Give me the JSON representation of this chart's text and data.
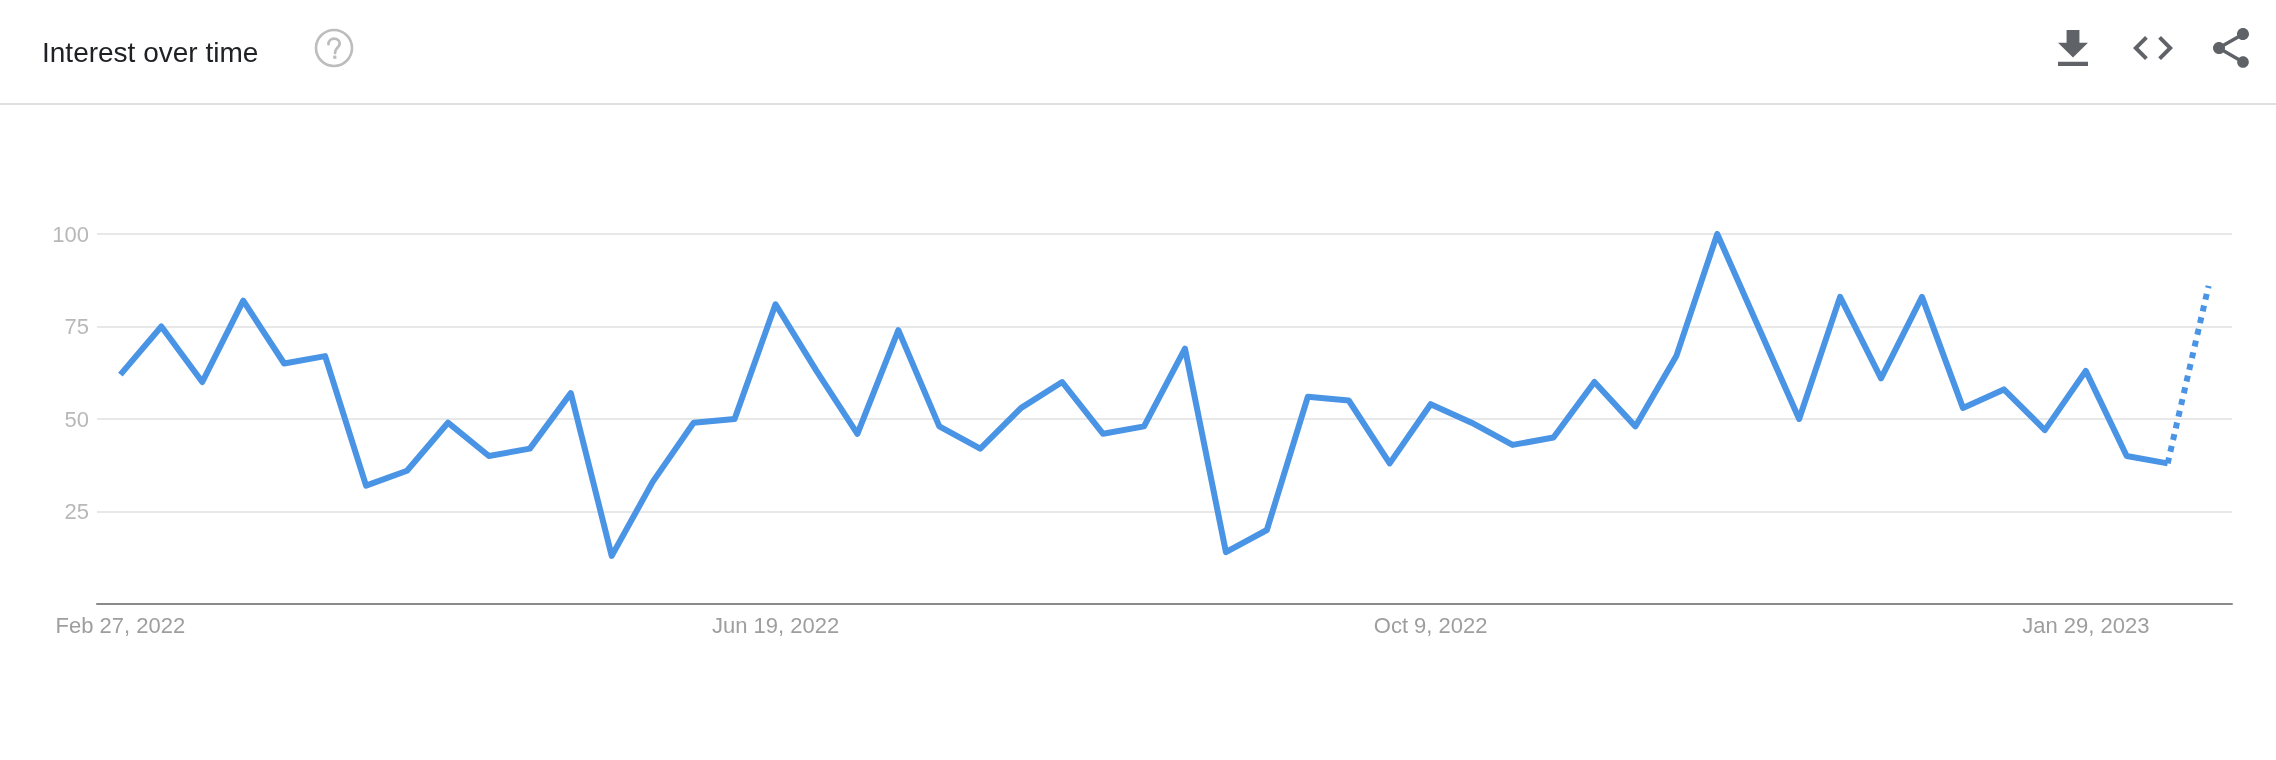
{
  "chart_data": {
    "type": "line",
    "title": "Interest over time",
    "x": [
      "2022-02-27",
      "2022-03-06",
      "2022-03-13",
      "2022-03-20",
      "2022-03-27",
      "2022-04-03",
      "2022-04-10",
      "2022-04-17",
      "2022-04-24",
      "2022-05-01",
      "2022-05-08",
      "2022-05-15",
      "2022-05-22",
      "2022-05-29",
      "2022-06-05",
      "2022-06-12",
      "2022-06-19",
      "2022-06-26",
      "2022-07-03",
      "2022-07-10",
      "2022-07-17",
      "2022-07-24",
      "2022-07-31",
      "2022-08-07",
      "2022-08-14",
      "2022-08-21",
      "2022-08-28",
      "2022-09-04",
      "2022-09-11",
      "2022-09-18",
      "2022-09-25",
      "2022-10-02",
      "2022-10-09",
      "2022-10-16",
      "2022-10-23",
      "2022-10-30",
      "2022-11-06",
      "2022-11-13",
      "2022-11-20",
      "2022-11-27",
      "2022-12-04",
      "2022-12-11",
      "2022-12-18",
      "2022-12-25",
      "2023-01-01",
      "2023-01-08",
      "2023-01-15",
      "2023-01-22",
      "2023-01-29",
      "2023-02-05",
      "2023-02-12"
    ],
    "series": [
      {
        "color": "#4a94e6",
        "line_style": "solid",
        "values": [
          62,
          75,
          60,
          82,
          65,
          67,
          32,
          36,
          49,
          40,
          42,
          57,
          13,
          33,
          49,
          50,
          81,
          63,
          46,
          74,
          48,
          42,
          53,
          60,
          46,
          48,
          69,
          14,
          20,
          56,
          55,
          38,
          54,
          49,
          43,
          45,
          60,
          48,
          67,
          100,
          75,
          50,
          83,
          61,
          83,
          53,
          58,
          47,
          63,
          40,
          38
        ]
      },
      {
        "color": "#4a94e6",
        "line_style": "dotted",
        "x": [
          "2023-02-12",
          "2023-02-19"
        ],
        "values": [
          38,
          86
        ]
      }
    ],
    "xlim": [
      "2022-02-23",
      "2023-02-23"
    ],
    "xticks": [
      {
        "value": "2022-02-27",
        "label": "Feb 27, 2022"
      },
      {
        "value": "2022-06-19",
        "label": "Jun 19, 2022"
      },
      {
        "value": "2022-10-09",
        "label": "Oct 9, 2022"
      },
      {
        "value": "2023-01-29",
        "label": "Jan 29, 2023"
      }
    ],
    "ylim": [
      0,
      100
    ],
    "yticks": [
      25,
      50,
      75,
      100
    ],
    "grid": "y",
    "marker": "none"
  }
}
